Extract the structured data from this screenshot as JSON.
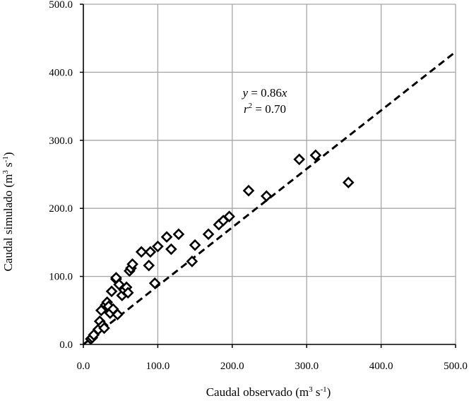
{
  "chart_data": {
    "type": "scatter",
    "title": "",
    "xlabel": "Caudal observado (m³ s⁻¹)",
    "ylabel": "Caudal simulado (m³ s⁻¹)",
    "xlim": [
      0,
      500
    ],
    "ylim": [
      0,
      500
    ],
    "xticks": [
      "0.0",
      "100.0",
      "200.0",
      "300.0",
      "400.0",
      "500.0"
    ],
    "yticks": [
      "0.0",
      "100.0",
      "200.0",
      "300.0",
      "400.0",
      "500.0"
    ],
    "grid": true,
    "legend": "none",
    "marker": "diamond-open",
    "series": [
      {
        "x": [
          10,
          12,
          14,
          20,
          22,
          24,
          26,
          28,
          30,
          32,
          34,
          36,
          38,
          40,
          44,
          46,
          48,
          52,
          55,
          58,
          60,
          62,
          64,
          66,
          78,
          88,
          90,
          100,
          112,
          118,
          128,
          146,
          150,
          168,
          182,
          188,
          196,
          222,
          246,
          290,
          312,
          356,
          44,
          96
        ],
        "y": [
          8,
          10,
          14,
          22,
          34,
          50,
          28,
          24,
          58,
          62,
          56,
          46,
          78,
          52,
          96,
          44,
          88,
          72,
          80,
          84,
          76,
          108,
          112,
          118,
          136,
          116,
          136,
          144,
          158,
          140,
          162,
          122,
          146,
          162,
          176,
          182,
          188,
          226,
          218,
          272,
          278,
          238,
          98,
          90
        ]
      }
    ],
    "fit_line": {
      "slope": 0.86,
      "style": "dashed"
    },
    "annotations": {
      "equation": "y = 0.86x",
      "r_squared": "r2 = 0.70"
    },
    "colors": {
      "marker": "#000000",
      "grid": "#a6a6a6",
      "axis": "#000000",
      "line": "#000000"
    }
  }
}
